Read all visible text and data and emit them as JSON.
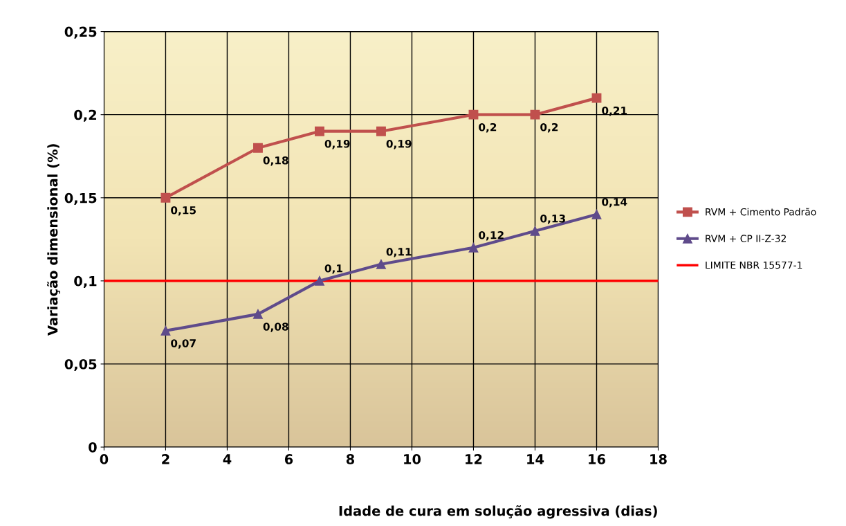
{
  "chart_data": {
    "type": "line",
    "xlabel": "Idade de cura em solução agressiva (dias)",
    "ylabel": "Variação dimensional (%)",
    "xlim": [
      0,
      18
    ],
    "xticks": [
      0,
      2,
      4,
      6,
      8,
      10,
      12,
      14,
      16,
      18
    ],
    "ylim": [
      0,
      0.25
    ],
    "yticks": [
      {
        "value": 0,
        "label": "0"
      },
      {
        "value": 0.05,
        "label": "0,05"
      },
      {
        "value": 0.1,
        "label": "0,1"
      },
      {
        "value": 0.15,
        "label": "0,15"
      },
      {
        "value": 0.2,
        "label": "0,2"
      },
      {
        "value": 0.25,
        "label": "0,25"
      }
    ],
    "grid": true,
    "legend": "right",
    "series": [
      {
        "name": "RVM + Cimento Padrão",
        "color": "#c0504d",
        "marker": "square",
        "x": [
          2,
          5,
          7,
          9,
          12,
          14,
          16
        ],
        "values": [
          0.15,
          0.18,
          0.19,
          0.19,
          0.2,
          0.2,
          0.21
        ],
        "value_labels": [
          "0,15",
          "0,18",
          "0,19",
          "0,19",
          "0,2",
          "0,2",
          "0,21"
        ]
      },
      {
        "name": "RVM + CP II-Z-32",
        "color": "#5f4b8b",
        "marker": "triangle",
        "x": [
          2,
          5,
          7,
          9,
          12,
          14,
          16
        ],
        "values": [
          0.07,
          0.08,
          0.1,
          0.11,
          0.12,
          0.13,
          0.14
        ],
        "value_labels": [
          "0,07",
          "0,08",
          "0,1",
          "0,11",
          "0,12",
          "0,13",
          "0,14"
        ]
      }
    ],
    "ref_lines": [
      {
        "axis": "y",
        "value": 0.1,
        "label": "LIMITE NBR 15577-1",
        "color": "#ff0000"
      }
    ]
  }
}
